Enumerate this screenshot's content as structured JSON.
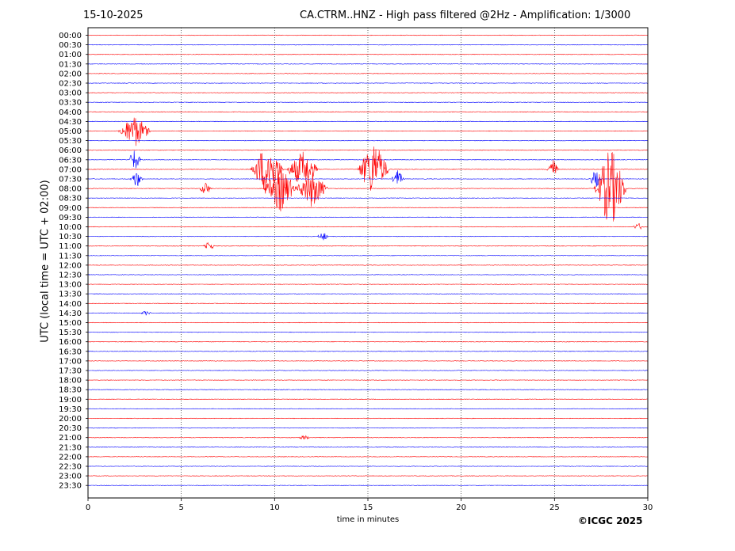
{
  "header": {
    "date": "15-10-2025",
    "title": "CA.CTRM..HNZ - High pass filtered @2Hz - Amplification: 1/3000"
  },
  "footer": {
    "copyright": "©ICGC 2025"
  },
  "colors": {
    "trace_a": "#ff0000",
    "trace_b": "#0000ff",
    "grid": "#000000"
  },
  "chart_data": {
    "type": "line",
    "title": "CA.CTRM..HNZ - High pass filtered @2Hz - Amplification: 1/3000",
    "xlabel": "time in minutes",
    "ylabel": "UTC (local time = UTC + 02:00)",
    "xlim": [
      0,
      30
    ],
    "xticks": [
      0,
      5,
      10,
      15,
      20,
      25,
      30
    ],
    "vertical_grid": [
      5,
      10,
      15,
      20,
      25
    ],
    "grid": "dotted vertical",
    "row_labels": [
      "00:00",
      "00:30",
      "01:00",
      "01:30",
      "02:00",
      "02:30",
      "03:00",
      "03:30",
      "04:00",
      "04:30",
      "05:00",
      "05:30",
      "06:00",
      "06:30",
      "07:00",
      "07:30",
      "08:00",
      "08:30",
      "09:00",
      "09:30",
      "10:00",
      "10:30",
      "11:00",
      "11:30",
      "12:00",
      "12:30",
      "13:00",
      "13:30",
      "14:00",
      "14:30",
      "15:00",
      "15:30",
      "16:00",
      "16:30",
      "17:00",
      "17:30",
      "18:00",
      "18:30",
      "19:00",
      "19:30",
      "20:00",
      "20:30",
      "21:00",
      "21:30",
      "22:00",
      "22:30",
      "23:00",
      "23:30"
    ],
    "row_colors": "alternating red (:00) / blue (:30)",
    "events": [
      {
        "row": "05:00",
        "t": 2.5,
        "amp": 3.5
      },
      {
        "row": "06:30",
        "t": 2.5,
        "amp": 2.5
      },
      {
        "row": "07:00",
        "t": 9.6,
        "amp": 6
      },
      {
        "row": "07:00",
        "t": 11.5,
        "amp": 4
      },
      {
        "row": "07:00",
        "t": 15.3,
        "amp": 6
      },
      {
        "row": "07:00",
        "t": 24.9,
        "amp": 2.5
      },
      {
        "row": "07:30",
        "t": 2.6,
        "amp": 2
      },
      {
        "row": "07:30",
        "t": 16.6,
        "amp": 2
      },
      {
        "row": "07:30",
        "t": 27.2,
        "amp": 2
      },
      {
        "row": "08:00",
        "t": 6.3,
        "amp": 1.5
      },
      {
        "row": "08:00",
        "t": 10.3,
        "amp": 5
      },
      {
        "row": "08:00",
        "t": 12.0,
        "amp": 4
      },
      {
        "row": "08:00",
        "t": 28.0,
        "amp": 9
      },
      {
        "row": "10:30",
        "t": 12.6,
        "amp": 1
      },
      {
        "row": "11:00",
        "t": 6.5,
        "amp": 1
      },
      {
        "row": "14:30",
        "t": 3.1,
        "amp": 0.5
      },
      {
        "row": "21:00",
        "t": 11.6,
        "amp": 0.6
      },
      {
        "row": "10:00",
        "t": 29.5,
        "amp": 0.8
      }
    ]
  }
}
